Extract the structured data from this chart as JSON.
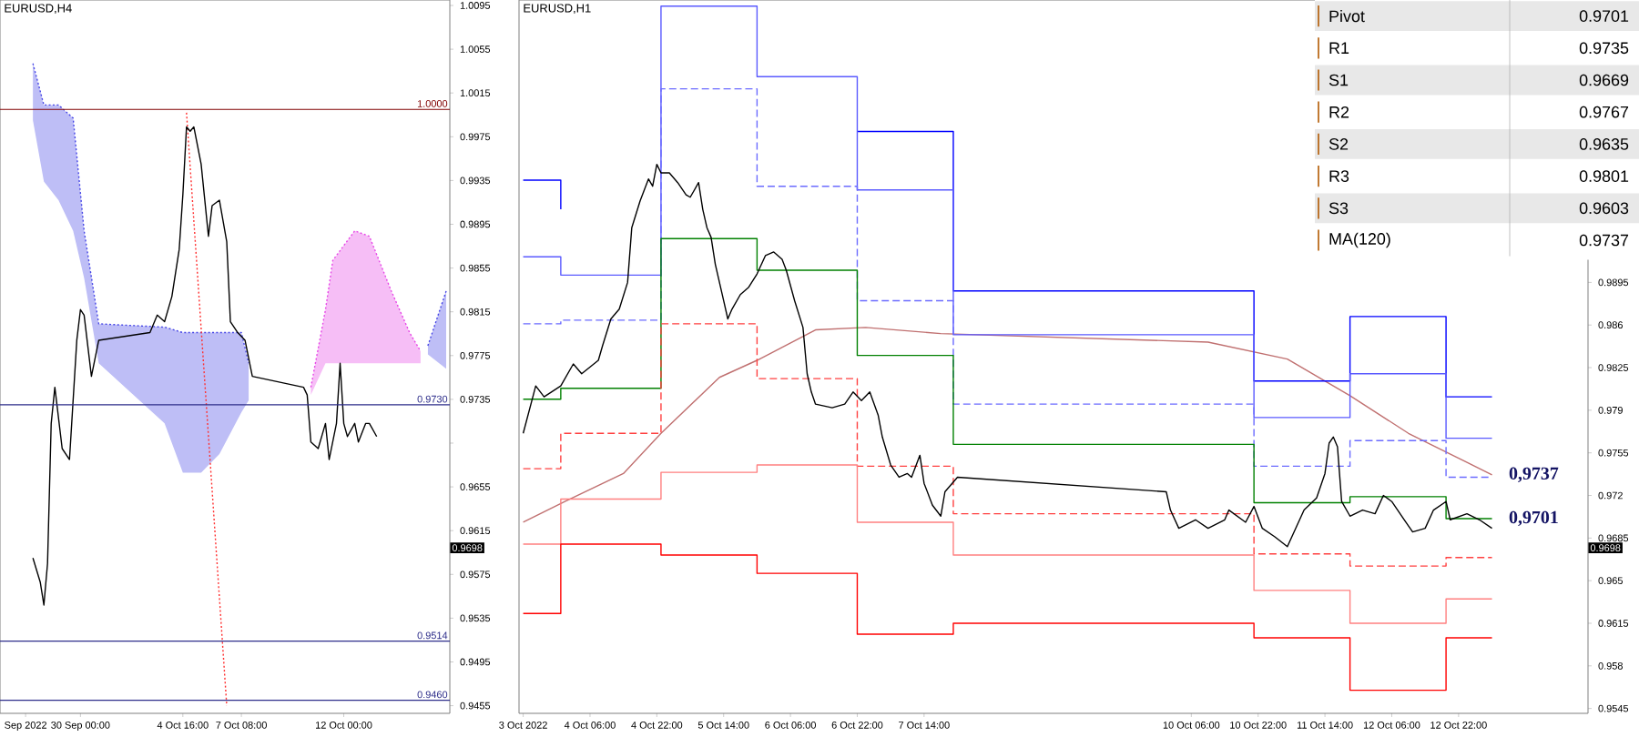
{
  "chart_data": [
    {
      "type": "line",
      "title": "EURUSD,H4",
      "xlim": [
        "2022-09-26T08:00",
        "2022-10-16T20:00"
      ],
      "ylim": [
        0.9448,
        1.01
      ],
      "xticks": [
        {
          "value": "2022-09-27T12:00",
          "label": "Sep 2022"
        },
        {
          "value": "2022-09-30T00:00",
          "label": "30 Sep 00:00"
        },
        {
          "value": "2022-10-04T16:00",
          "label": "4 Oct 16:00"
        },
        {
          "value": "2022-10-07T08:00",
          "label": "7 Oct 08:00"
        },
        {
          "value": "2022-10-12T00:00",
          "label": "12 Oct 00:00"
        }
      ],
      "yticks": [
        0.9455,
        0.9495,
        0.9535,
        0.9575,
        0.9615,
        0.9655,
        {
          "value": 0.9695,
          "label": null
        },
        0.9735,
        0.9775,
        0.9815,
        0.9855,
        0.9895,
        0.9935,
        0.9975,
        1.0015,
        1.0055,
        1.0095
      ],
      "series": [
        {
          "type": "line",
          "color": "#4646e6",
          "line_style": "dotted",
          "x": [
            "2022-09-27T20:00",
            "2022-09-28T08:00",
            "2022-09-29T00:00",
            "2022-09-29T16:00",
            "2022-09-30T04:00",
            "2022-09-30T20:00",
            "2022-10-03T20:00",
            "2022-10-04T16:00",
            "2022-10-05T12:00",
            "2022-10-06T08:00",
            "2022-10-07T08:00",
            "2022-10-07T16:00"
          ],
          "values": [
            1.0042,
            1.0004,
            1.0004,
            0.9992,
            0.9889,
            0.9804,
            0.9801,
            0.9796,
            0.9796,
            0.9796,
            0.9796,
            0.9768
          ],
          "upper": [
            1.0042,
            1.0004,
            1.0004,
            0.9992,
            0.9889,
            0.9804,
            0.9801,
            0.9796,
            0.9796,
            0.9796,
            0.9796,
            0.9768
          ],
          "lower": [
            0.999,
            0.9934,
            0.9917,
            0.9889,
            0.9846,
            0.9768,
            0.9713,
            0.9668,
            0.9668,
            0.9685,
            0.9723,
            0.9734
          ]
        },
        {
          "type": "line",
          "color": "#e646e6",
          "line_style": "dotted",
          "x": [
            "2022-10-10T12:00",
            "2022-10-11T04:00",
            "2022-10-11T12:00",
            "2022-10-12T12:00",
            "2022-10-13T04:00",
            "2022-10-14T04:00",
            "2022-10-15T00:00",
            "2022-10-15T12:00"
          ],
          "values": [
            0.9746,
            0.9817,
            0.9862,
            0.9889,
            0.9884,
            0.9834,
            0.9796,
            0.9779
          ],
          "upper": [
            0.9746,
            0.9817,
            0.9862,
            0.9889,
            0.9884,
            0.9834,
            0.9796,
            0.9779
          ],
          "lower": [
            0.9739,
            0.9768,
            0.9768,
            0.9768,
            0.9768,
            0.9768,
            0.9768,
            0.9768
          ]
        },
        {
          "type": "line",
          "color": "#4646e6",
          "line_style": "dotted",
          "x": [
            "2022-10-15T20:00",
            "2022-10-16T16:00"
          ],
          "values": [
            0.9784,
            0.9834
          ],
          "upper": [
            0.9784,
            0.9834
          ],
          "lower": [
            0.9776,
            0.9763
          ]
        },
        {
          "type": "line",
          "color": "#ff3030",
          "line_style": "dotted",
          "x": [
            "2022-10-04T20:00",
            "2022-10-06T16:00"
          ],
          "values": [
            0.9997,
            0.9455
          ]
        },
        {
          "type": "line",
          "color": "#000000",
          "x": [
            "2022-09-27T20:00",
            "2022-09-28T04:00",
            "2022-09-28T08:00",
            "2022-09-28T12:00",
            "2022-09-28T16:00",
            "2022-09-28T20:00",
            "2022-09-29T04:00",
            "2022-09-29T12:00",
            "2022-09-29T20:00",
            "2022-09-30T00:00",
            "2022-09-30T04:00",
            "2022-09-30T12:00",
            "2022-09-30T20:00",
            "2022-10-03T04:00",
            "2022-10-03T12:00",
            "2022-10-03T20:00",
            "2022-10-04T04:00",
            "2022-10-04T12:00",
            "2022-10-04T16:00",
            "2022-10-04T20:00",
            "2022-10-05T00:00",
            "2022-10-05T04:00",
            "2022-10-05T12:00",
            "2022-10-05T16:00",
            "2022-10-05T20:00",
            "2022-10-06T00:00",
            "2022-10-06T08:00",
            "2022-10-06T16:00",
            "2022-10-06T20:00",
            "2022-10-07T04:00",
            "2022-10-07T12:00",
            "2022-10-07T20:00",
            "2022-10-10T04:00",
            "2022-10-10T08:00",
            "2022-10-10T12:00",
            "2022-10-10T20:00",
            "2022-10-11T04:00",
            "2022-10-11T08:00",
            "2022-10-11T16:00",
            "2022-10-11T20:00",
            "2022-10-12T00:00",
            "2022-10-12T04:00",
            "2022-10-12T12:00",
            "2022-10-12T16:00",
            "2022-10-13T00:00",
            "2022-10-13T04:00",
            "2022-10-13T12:00"
          ],
          "values": [
            0.959,
            0.9568,
            0.9547,
            0.9585,
            0.9713,
            0.9746,
            0.969,
            0.968,
            0.9789,
            0.9817,
            0.9812,
            0.9756,
            0.9789,
            0.9796,
            0.9812,
            0.9806,
            0.9829,
            0.9872,
            0.9922,
            0.9984,
            0.998,
            0.9984,
            0.995,
            0.9917,
            0.9884,
            0.9912,
            0.9917,
            0.9879,
            0.9806,
            0.9796,
            0.9789,
            0.9756,
            0.9746,
            0.9739,
            0.9696,
            0.969,
            0.9713,
            0.968,
            0.9713,
            0.9768,
            0.9713,
            0.9701,
            0.9713,
            0.9696,
            0.9713,
            0.9713,
            0.9701
          ]
        }
      ],
      "ref_lines": [
        {
          "axis": "y",
          "value": 1.0,
          "label": "1.0000",
          "color": "#800000"
        },
        {
          "axis": "y",
          "value": 0.973,
          "label": "0.9730",
          "color": "#2e2e8a"
        },
        {
          "axis": "y",
          "value": 0.9514,
          "label": "0.9514",
          "color": "#2e2e8a"
        },
        {
          "axis": "y",
          "value": 0.946,
          "label": "0.9460",
          "color": "#2e2e8a"
        }
      ],
      "annotations": [
        "0.9698"
      ]
    },
    {
      "type": "line",
      "title": "EURUSD,H1",
      "xlim": [
        "2022-10-03T13:00",
        "2022-10-14T05:00"
      ],
      "ylim": [
        0.9541,
        1.0127
      ],
      "xticks": [
        {
          "value": "2022-10-03T14:00",
          "label": "3 Oct 2022"
        },
        {
          "value": "2022-10-04T06:00",
          "label": "4 Oct 06:00"
        },
        {
          "value": "2022-10-04T22:00",
          "label": "4 Oct 22:00"
        },
        {
          "value": "2022-10-05T14:00",
          "label": "5 Oct 14:00"
        },
        {
          "value": "2022-10-06T06:00",
          "label": "6 Oct 06:00"
        },
        {
          "value": "2022-10-06T22:00",
          "label": "6 Oct 22:00"
        },
        {
          "value": "2022-10-07T14:00",
          "label": "7 Oct 14:00"
        },
        {
          "value": "2022-10-10T06:00",
          "label": "10 Oct 06:00"
        },
        {
          "value": "2022-10-10T22:00",
          "label": "10 Oct 22:00"
        },
        {
          "value": "2022-10-11T14:00",
          "label": "11 Oct 14:00"
        },
        {
          "value": "2022-10-12T06:00",
          "label": "12 Oct 06:00"
        },
        {
          "value": "2022-10-12T22:00",
          "label": "12 Oct 22:00"
        }
      ],
      "yticks": [
        0.9545,
        0.958,
        0.9615,
        0.965,
        0.9685,
        0.972,
        0.9755,
        0.979,
        0.9825,
        0.986,
        0.9895
      ],
      "series": [
        {
          "type": "line",
          "color": "#c07070",
          "x": [
            "2022-10-03T14:00",
            "2022-10-04T00:00",
            "2022-10-04T14:00",
            "2022-10-04T23:00",
            "2022-10-05T13:00",
            "2022-10-05T22:00",
            "2022-10-06T12:00",
            "2022-10-07T00:00",
            "2022-10-07T18:00",
            "2022-10-10T10:00",
            "2022-10-11T05:00",
            "2022-10-11T20:00",
            "2022-10-12T10:00",
            "2022-10-13T06:00"
          ],
          "values": [
            0.9698,
            0.9715,
            0.9738,
            0.9771,
            0.9817,
            0.9831,
            0.9856,
            0.9858,
            0.9853,
            0.9846,
            0.9832,
            0.9802,
            0.9771,
            0.9737
          ]
        },
        {
          "type": "step",
          "color": "#0000ff",
          "x": [
            "2022-10-03T14:00",
            "2022-10-03T23:00",
            "2022-10-04T23:00",
            "2022-10-05T22:00",
            "2022-10-06T22:00",
            "2022-10-07T21:00",
            "2022-10-10T21:00",
            "2022-10-11T20:00",
            "2022-10-12T19:00",
            "2022-10-13T06:00"
          ],
          "values": [
            0.9979,
            0.9955,
            null,
            null,
            1.0019,
            0.9888,
            0.9814,
            0.9867,
            0.9801,
            0.9801
          ]
        },
        {
          "type": "step",
          "color": "#5a5aff",
          "x": [
            "2022-10-03T14:00",
            "2022-10-03T23:00",
            "2022-10-04T23:00",
            "2022-10-05T22:00",
            "2022-10-06T22:00",
            "2022-10-07T21:00",
            "2022-10-10T21:00",
            "2022-10-11T20:00",
            "2022-10-12T19:00",
            "2022-10-13T06:00"
          ],
          "values": [
            0.9916,
            0.9901,
            1.0122,
            1.0064,
            0.9971,
            0.9852,
            0.9784,
            0.982,
            0.9767,
            0.9767
          ]
        },
        {
          "type": "step",
          "color": "#6b6bff",
          "line_style": "dashed",
          "x": [
            "2022-10-03T14:00",
            "2022-10-03T23:00",
            "2022-10-04T23:00",
            "2022-10-05T22:00",
            "2022-10-06T22:00",
            "2022-10-07T21:00",
            "2022-10-10T21:00",
            "2022-10-11T20:00",
            "2022-10-12T19:00",
            "2022-10-13T06:00"
          ],
          "values": [
            0.9861,
            0.9864,
            1.0054,
            0.9974,
            0.988,
            0.9795,
            0.9744,
            0.9765,
            0.9735,
            0.9735
          ]
        },
        {
          "type": "step",
          "color": "#008000",
          "x": [
            "2022-10-03T14:00",
            "2022-10-03T23:00",
            "2022-10-04T23:00",
            "2022-10-05T22:00",
            "2022-10-06T22:00",
            "2022-10-07T21:00",
            "2022-10-10T21:00",
            "2022-10-11T20:00",
            "2022-10-12T19:00",
            "2022-10-13T06:00"
          ],
          "values": [
            0.9799,
            0.9808,
            0.9931,
            0.9905,
            0.9835,
            0.9762,
            0.9714,
            0.9719,
            0.9701,
            0.9701
          ]
        },
        {
          "type": "step",
          "color": "#ff4040",
          "line_style": "dashed",
          "x": [
            "2022-10-03T14:00",
            "2022-10-03T23:00",
            "2022-10-04T23:00",
            "2022-10-05T22:00",
            "2022-10-06T22:00",
            "2022-10-07T21:00",
            "2022-10-10T21:00",
            "2022-10-11T20:00",
            "2022-10-12T19:00",
            "2022-10-13T06:00"
          ],
          "values": [
            0.9742,
            0.9771,
            0.9861,
            0.9816,
            0.9744,
            0.9705,
            0.9672,
            0.9662,
            0.9669,
            0.9669
          ]
        },
        {
          "type": "step",
          "color": "#ff8080",
          "x": [
            "2022-10-03T14:00",
            "2022-10-03T23:00",
            "2022-10-04T23:00",
            "2022-10-05T22:00",
            "2022-10-06T22:00",
            "2022-10-07T21:00",
            "2022-10-10T21:00",
            "2022-10-11T20:00",
            "2022-10-12T19:00",
            "2022-10-13T06:00"
          ],
          "values": [
            0.968,
            0.9717,
            0.9739,
            0.9745,
            0.9698,
            0.9671,
            0.9642,
            0.9615,
            0.9635,
            0.9635
          ]
        },
        {
          "type": "step",
          "color": "#ff0000",
          "x": [
            "2022-10-03T14:00",
            "2022-10-03T23:00",
            "2022-10-04T23:00",
            "2022-10-05T22:00",
            "2022-10-06T22:00",
            "2022-10-07T21:00",
            "2022-10-10T21:00",
            "2022-10-11T20:00",
            "2022-10-12T19:00",
            "2022-10-13T06:00"
          ],
          "values": [
            0.9623,
            0.968,
            0.9671,
            0.9656,
            0.9606,
            0.9615,
            0.9603,
            0.956,
            0.9603,
            0.9603
          ]
        },
        {
          "type": "line",
          "color": "#000000",
          "x": [
            "2022-10-03T14:00",
            "2022-10-03T17:00",
            "2022-10-03T19:00",
            "2022-10-03T23:00",
            "2022-10-04T02:00",
            "2022-10-04T04:00",
            "2022-10-04T08:00",
            "2022-10-04T09:00",
            "2022-10-04T11:00",
            "2022-10-04T13:00",
            "2022-10-04T15:00",
            "2022-10-04T16:00",
            "2022-10-04T18:00",
            "2022-10-04T20:00",
            "2022-10-04T21:00",
            "2022-10-04T22:00",
            "2022-10-04T23:00",
            "2022-10-05T01:00",
            "2022-10-05T03:00",
            "2022-10-05T05:00",
            "2022-10-05T06:00",
            "2022-10-05T08:00",
            "2022-10-05T09:00",
            "2022-10-05T10:00",
            "2022-10-05T11:00",
            "2022-10-05T12:00",
            "2022-10-05T14:00",
            "2022-10-05T15:00",
            "2022-10-05T16:00",
            "2022-10-05T18:00",
            "2022-10-05T20:00",
            "2022-10-05T22:00",
            "2022-10-06T00:00",
            "2022-10-06T02:00",
            "2022-10-06T04:00",
            "2022-10-06T05:00",
            "2022-10-06T07:00",
            "2022-10-06T09:00",
            "2022-10-06T10:00",
            "2022-10-06T11:00",
            "2022-10-06T12:00",
            "2022-10-06T16:00",
            "2022-10-06T19:00",
            "2022-10-06T21:00",
            "2022-10-06T23:00",
            "2022-10-07T01:00",
            "2022-10-07T03:00",
            "2022-10-07T04:00",
            "2022-10-07T06:00",
            "2022-10-07T08:00",
            "2022-10-07T10:00",
            "2022-10-07T11:00",
            "2022-10-07T13:00",
            "2022-10-07T14:00",
            "2022-10-07T16:00",
            "2022-10-07T18:00",
            "2022-10-07T19:00",
            "2022-10-07T22:00",
            "2022-10-10T00:00",
            "2022-10-10T01:00",
            "2022-10-10T03:00",
            "2022-10-10T07:00",
            "2022-10-10T10:00",
            "2022-10-10T14:00",
            "2022-10-10T15:00",
            "2022-10-10T19:00",
            "2022-10-10T21:00",
            "2022-10-10T23:00",
            "2022-10-11T02:00",
            "2022-10-11T05:00",
            "2022-10-11T07:00",
            "2022-10-11T09:00",
            "2022-10-11T12:00",
            "2022-10-11T14:00",
            "2022-10-11T15:00",
            "2022-10-11T16:00",
            "2022-10-11T17:00",
            "2022-10-11T18:00",
            "2022-10-11T20:00",
            "2022-10-11T23:00",
            "2022-10-12T02:00",
            "2022-10-12T04:00",
            "2022-10-12T06:00",
            "2022-10-12T09:00",
            "2022-10-12T11:00",
            "2022-10-12T14:00",
            "2022-10-12T16:00",
            "2022-10-12T19:00",
            "2022-10-12T20:00",
            "2022-10-13T00:00",
            "2022-10-13T03:00",
            "2022-10-13T06:00"
          ],
          "values": [
            0.9771,
            0.981,
            0.9801,
            0.981,
            0.9828,
            0.982,
            0.9831,
            0.9843,
            0.9865,
            0.9873,
            0.9895,
            0.994,
            0.9962,
            0.998,
            0.9974,
            0.9992,
            0.9985,
            0.9985,
            0.9977,
            0.9967,
            0.9965,
            0.9977,
            0.9955,
            0.994,
            0.9932,
            0.991,
            0.988,
            0.9865,
            0.9873,
            0.9885,
            0.9891,
            0.9902,
            0.9917,
            0.992,
            0.9914,
            0.9905,
            0.988,
            0.9858,
            0.982,
            0.9805,
            0.9795,
            0.9792,
            0.9795,
            0.9805,
            0.9798,
            0.9805,
            0.9786,
            0.9768,
            0.9745,
            0.9735,
            0.9738,
            0.9735,
            0.9753,
            0.973,
            0.9712,
            0.9703,
            0.9723,
            0.9735,
            0.9723,
            0.9708,
            0.9693,
            0.97,
            0.9693,
            0.97,
            0.9708,
            0.9698,
            0.9711,
            0.9693,
            0.9686,
            0.9678,
            0.9693,
            0.9708,
            0.9718,
            0.9738,
            0.9763,
            0.9768,
            0.976,
            0.9715,
            0.9703,
            0.9708,
            0.9705,
            0.972,
            0.9715,
            0.97,
            0.969,
            0.9693,
            0.9708,
            0.9715,
            0.97,
            0.9705,
            0.97,
            0.9693
          ]
        }
      ],
      "annotations": [
        "0.9698",
        {
          "text": "0,9737",
          "x": "2022-10-13T16:00",
          "y": 0.9737
        },
        {
          "text": "0,9701",
          "x": "2022-10-13T16:00",
          "y": 0.9701
        }
      ]
    },
    {
      "type": "other",
      "categories": [
        "Pivot",
        "R1",
        "S1",
        "R2",
        "S2",
        "R3",
        "S3",
        "MA(120)"
      ],
      "values": [
        0.9701,
        0.9735,
        0.9669,
        0.9767,
        0.9635,
        0.9801,
        0.9603,
        0.9737
      ],
      "data_labels": true
    }
  ]
}
